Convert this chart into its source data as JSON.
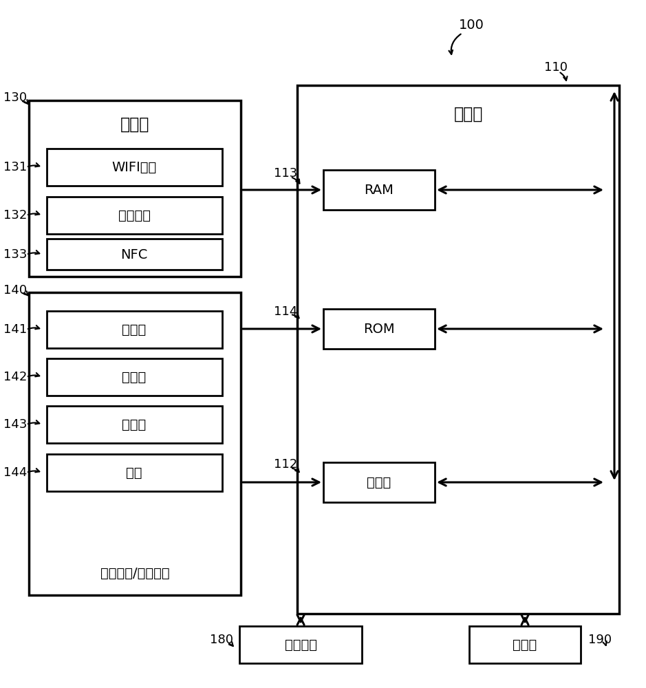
{
  "bg_color": "#ffffff",
  "line_color": "#000000",
  "font_color": "#000000",
  "text_controller": "控制器",
  "text_comm": "通信器",
  "text_wifi": "WIFI模块",
  "text_bt": "蓝牙模块",
  "text_nfc": "NFC",
  "text_user": "用户输入/输出接口",
  "text_mic": "麦克风",
  "text_touch": "触摸板",
  "text_sensor": "传感器",
  "text_key": "按键",
  "text_ram": "RAM",
  "text_rom": "ROM",
  "text_proc": "处理器",
  "text_power": "供电电源",
  "text_storage": "存储器",
  "label_100": "100",
  "label_110": "110",
  "label_112": "112",
  "label_113": "113",
  "label_114": "114",
  "label_130": "130",
  "label_131": "131",
  "label_132": "132",
  "label_133": "133",
  "label_140": "140",
  "label_141": "141",
  "label_142": "142",
  "label_143": "143",
  "label_144": "144",
  "label_180": "180",
  "label_190": "190",
  "figsize": [
    9.39,
    10.0
  ],
  "dpi": 100
}
